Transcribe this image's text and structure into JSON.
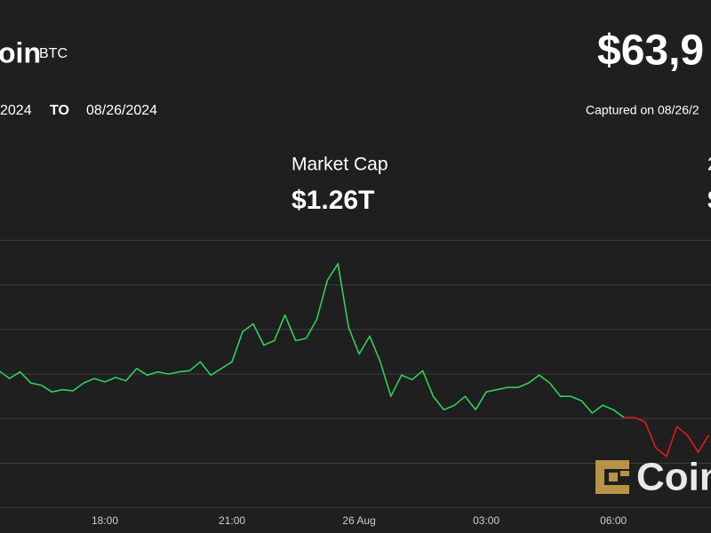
{
  "header": {
    "name": "oin",
    "symbol": "BTC",
    "price": "$63,9",
    "from_date": "2024",
    "to_label": "TO",
    "to_date": "08/26/2024",
    "captured": "Captured on 08/26/2"
  },
  "stats": {
    "label": "Market Cap",
    "value": "$1.26T",
    "right_label": "2",
    "right_value": "$"
  },
  "watermark": "Coin",
  "chart_data": {
    "type": "line",
    "categories": [
      null,
      null,
      null,
      null,
      null,
      null,
      null,
      null,
      null,
      null,
      "18:00",
      null,
      null,
      null,
      null,
      null,
      null,
      null,
      null,
      null,
      null,
      null,
      "21:00",
      null,
      null,
      null,
      null,
      null,
      null,
      null,
      null,
      null,
      null,
      null,
      "26 Aug",
      null,
      null,
      null,
      null,
      null,
      null,
      null,
      null,
      null,
      null,
      null,
      "03:00",
      null,
      null,
      null,
      null,
      null,
      null,
      null,
      null,
      null,
      null,
      null,
      "06:00",
      null,
      null,
      null,
      null,
      null,
      null,
      null,
      null,
      null
    ],
    "series": [
      {
        "color": "#2ed158",
        "values": [
          64215,
          64180,
          64210,
          64160,
          64150,
          64120,
          64130,
          64125,
          64160,
          64180,
          64165,
          64185,
          64170,
          64225,
          64195,
          64210,
          64200,
          64210,
          64215,
          64255,
          64195,
          64225,
          64255,
          64390,
          64425,
          64330,
          64350,
          64465,
          64350,
          64360,
          64445,
          64620,
          64695,
          64410,
          64290,
          64370,
          64255,
          64100,
          64195,
          64175,
          64215,
          64100,
          64040,
          64060,
          64100,
          64040,
          64120,
          64130,
          64140,
          64140,
          64160,
          64195,
          64160,
          64100,
          64100,
          64080,
          64025,
          64060,
          64040,
          64005,
          null,
          null,
          null,
          null,
          null,
          null,
          null,
          null
        ]
      },
      {
        "color": "#e31b1b",
        "values": [
          null,
          null,
          null,
          null,
          null,
          null,
          null,
          null,
          null,
          null,
          null,
          null,
          null,
          null,
          null,
          null,
          null,
          null,
          null,
          null,
          null,
          null,
          null,
          null,
          null,
          null,
          null,
          null,
          null,
          null,
          null,
          null,
          null,
          null,
          null,
          null,
          null,
          null,
          null,
          null,
          null,
          null,
          null,
          null,
          null,
          null,
          null,
          null,
          null,
          null,
          null,
          null,
          null,
          null,
          null,
          null,
          null,
          null,
          null,
          64005,
          64005,
          63985,
          63870,
          63830,
          63965,
          63925,
          63850,
          63925
        ]
      }
    ],
    "ylim": [
      63420,
      64850
    ],
    "yticks": [
      63600,
      63800,
      64000,
      64200,
      64400,
      64600,
      64800
    ],
    "grid": true
  }
}
